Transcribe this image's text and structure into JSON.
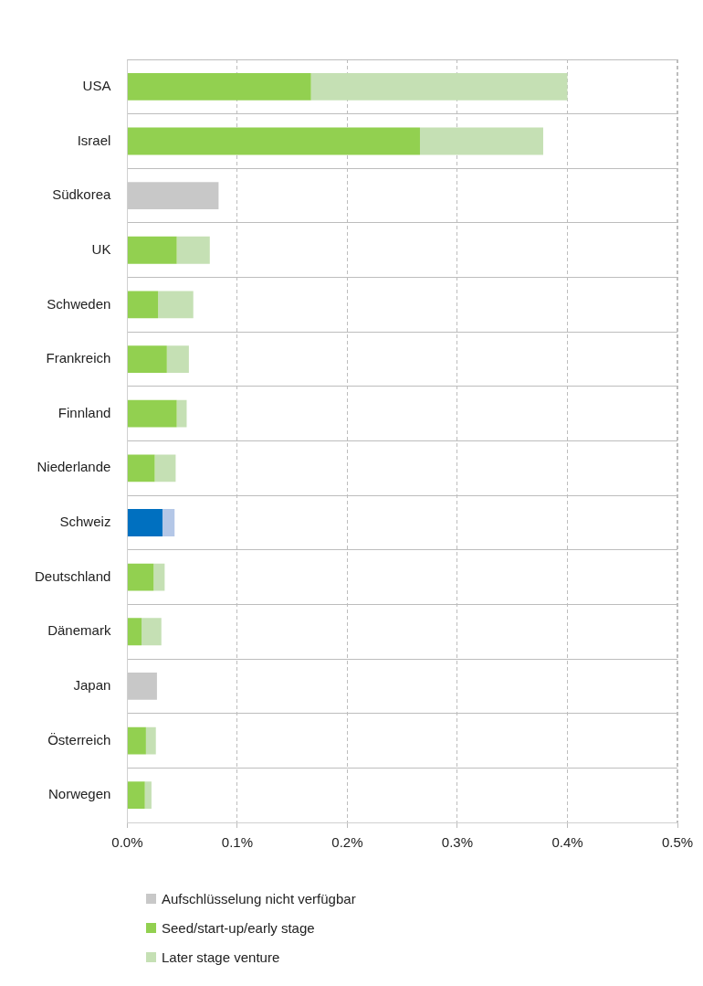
{
  "chart_data": {
    "type": "bar",
    "orientation": "horizontal",
    "stacked": true,
    "categories": [
      "USA",
      "Israel",
      "Südkorea",
      "UK",
      "Schweden",
      "Frankreich",
      "Finnland",
      "Niederlande",
      "Schweiz",
      "Deutschland",
      "Dänemark",
      "Japan",
      "Österreich",
      "Norwegen"
    ],
    "series": [
      {
        "name": "Aufschlüsselung nicht verfügbar",
        "color": "#c8c8c8",
        "values": [
          null,
          null,
          0.083,
          null,
          null,
          null,
          null,
          null,
          null,
          null,
          null,
          0.027,
          null,
          null
        ]
      },
      {
        "name": "Seed/start-up/early stage",
        "color": "#92d050",
        "colors": [
          "#92d050",
          "#92d050",
          "#92d050",
          "#92d050",
          "#92d050",
          "#92d050",
          "#92d050",
          "#92d050",
          "#0070c0",
          "#92d050",
          "#92d050",
          "#92d050",
          "#92d050",
          "#92d050"
        ],
        "values": [
          0.167,
          0.266,
          null,
          0.045,
          0.028,
          0.036,
          0.045,
          0.025,
          0.032,
          0.024,
          0.013,
          null,
          0.017,
          0.016
        ]
      },
      {
        "name": "Later stage venture",
        "color": "#c5e0b4",
        "colors": [
          "#c5e0b4",
          "#c5e0b4",
          "#c5e0b4",
          "#c5e0b4",
          "#c5e0b4",
          "#c5e0b4",
          "#c5e0b4",
          "#c5e0b4",
          "#b4c7e7",
          "#c5e0b4",
          "#c5e0b4",
          "#c5e0b4",
          "#c5e0b4",
          "#c5e0b4"
        ],
        "values": [
          0.233,
          0.112,
          null,
          0.03,
          0.032,
          0.02,
          0.009,
          0.019,
          0.011,
          0.01,
          0.018,
          null,
          0.009,
          0.006
        ]
      }
    ],
    "xlim": [
      0,
      0.5
    ],
    "xticks": [
      {
        "value": 0,
        "label": "0.0%"
      },
      {
        "value": 0.1,
        "label": "0.1%"
      },
      {
        "value": 0.2,
        "label": "0.2%"
      },
      {
        "value": 0.3,
        "label": "0.3%"
      },
      {
        "value": 0.4,
        "label": "0.4%"
      },
      {
        "value": 0.5,
        "label": "0.5%"
      }
    ],
    "grid": true,
    "legend": "bottom left"
  }
}
